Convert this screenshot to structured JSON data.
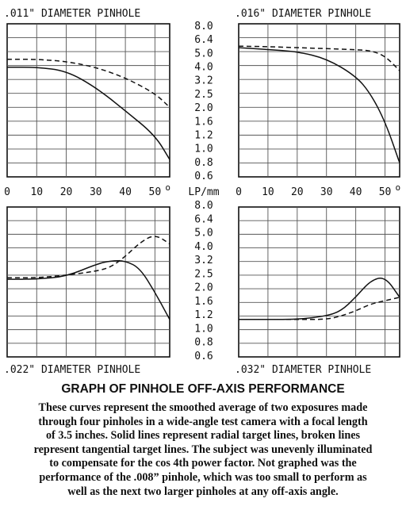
{
  "chart_data": [
    {
      "type": "line",
      "title": ".011\" DIAMETER PINHOLE",
      "x": [
        0,
        10,
        20,
        30,
        40,
        50,
        55
      ],
      "series": [
        {
          "style": "solid",
          "values": [
            3.9,
            3.9,
            3.7,
            2.8,
            1.9,
            1.2,
            0.85
          ]
        },
        {
          "style": "dashed",
          "values": [
            4.45,
            4.45,
            4.3,
            3.9,
            3.3,
            2.5,
            2.0
          ]
        }
      ]
    },
    {
      "type": "line",
      "title": ".016\" DIAMETER PINHOLE",
      "x": [
        0,
        10,
        20,
        30,
        40,
        45,
        50,
        55
      ],
      "series": [
        {
          "style": "solid",
          "values": [
            5.4,
            5.2,
            5.0,
            4.5,
            3.4,
            2.5,
            1.6,
            0.8
          ]
        },
        {
          "style": "dashed",
          "values": [
            5.55,
            5.5,
            5.4,
            5.3,
            5.2,
            5.1,
            4.7,
            3.7
          ]
        }
      ]
    },
    {
      "type": "line",
      "title": ".022\" DIAMETER PINHOLE",
      "x": [
        0,
        10,
        20,
        30,
        35,
        40,
        45,
        50,
        55
      ],
      "series": [
        {
          "style": "solid",
          "values": [
            2.35,
            2.35,
            2.45,
            3.05,
            3.25,
            3.25,
            2.85,
            1.9,
            1.15
          ]
        },
        {
          "style": "dashed",
          "values": [
            2.4,
            2.4,
            2.5,
            2.7,
            2.9,
            3.5,
            4.4,
            5.0,
            4.3
          ]
        }
      ]
    },
    {
      "type": "line",
      "title": ".032\" DIAMETER PINHOLE",
      "x": [
        0,
        10,
        20,
        30,
        35,
        40,
        45,
        50,
        55
      ],
      "series": [
        {
          "style": "solid",
          "values": [
            1.15,
            1.15,
            1.15,
            1.2,
            1.35,
            1.75,
            2.3,
            2.45,
            1.75
          ]
        },
        {
          "style": "dashed",
          "values": [
            1.15,
            1.15,
            1.15,
            1.15,
            1.2,
            1.35,
            1.55,
            1.65,
            1.75
          ]
        }
      ]
    }
  ],
  "shared_axes": {
    "x_ticks": [
      "0",
      "10",
      "20",
      "30",
      "40",
      "50"
    ],
    "degree_mark": "o",
    "y_ticks": [
      "8.0",
      "6.4",
      "5.0",
      "4.0",
      "3.2",
      "2.5",
      "2.0",
      "1.6",
      "1.2",
      "1.0",
      "0.8",
      "0.6"
    ],
    "y_unit_label": "LP/mm",
    "xlim": [
      0,
      55
    ],
    "y_scale": "tick-index (non-linear)"
  },
  "caption": {
    "title": "GRAPH OF PINHOLE OFF-AXIS PERFORMANCE",
    "lines": [
      "These curves represent the smoothed average of two exposures made",
      "through four pinholes in a wide-angle test camera with a focal length",
      "of 3.5 inches.  Solid lines represent radial target lines, broken lines",
      "represent tangential target lines.  The subject was unevenly illuminated",
      "to compensate for the cos 4th power factor.  Not graphed was the",
      "performance of the .008” pinhole, which was too small to perform as",
      "well as the next two larger pinholes at any off-axis angle."
    ]
  }
}
